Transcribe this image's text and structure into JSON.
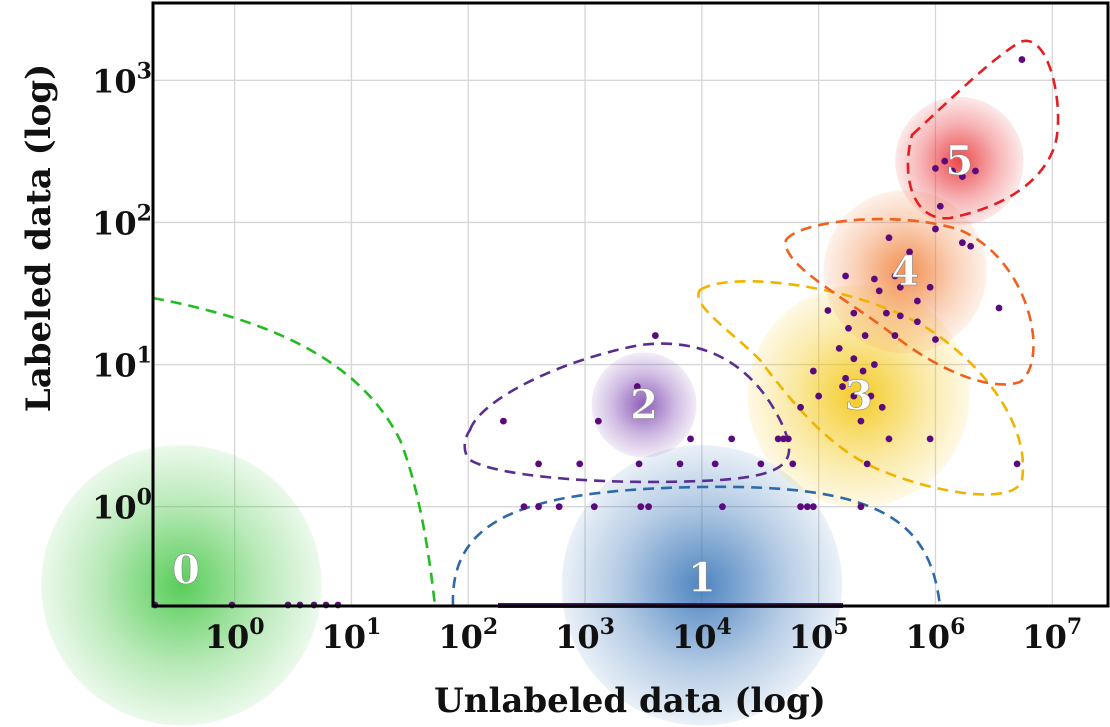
{
  "chart_data": {
    "type": "scatter",
    "title": "",
    "xlabel": "Unlabeled data (log)",
    "ylabel": "Labeled data (log)",
    "x_scale": "log",
    "y_scale": "log",
    "xlim": [
      0.2,
      30000000
    ],
    "ylim": [
      0.2,
      3500
    ],
    "grid": true,
    "x_ticks": [
      {
        "value": 1,
        "base": "10",
        "exp": "0"
      },
      {
        "value": 10,
        "base": "10",
        "exp": "1"
      },
      {
        "value": 100,
        "base": "10",
        "exp": "2"
      },
      {
        "value": 1000,
        "base": "10",
        "exp": "3"
      },
      {
        "value": 10000,
        "base": "10",
        "exp": "4"
      },
      {
        "value": 100000,
        "base": "10",
        "exp": "5"
      },
      {
        "value": 1000000,
        "base": "10",
        "exp": "6"
      },
      {
        "value": 10000000,
        "base": "10",
        "exp": "7"
      }
    ],
    "y_ticks": [
      {
        "value": 1,
        "base": "10",
        "exp": "0"
      },
      {
        "value": 10,
        "base": "10",
        "exp": "1"
      },
      {
        "value": 100,
        "base": "10",
        "exp": "2"
      },
      {
        "value": 1000,
        "base": "10",
        "exp": "3"
      }
    ],
    "clusters": [
      {
        "label": "0",
        "color": "#3cc43c",
        "boundary_color": "#22bb22",
        "x": 0.35,
        "y": 0.28,
        "size": 1.2
      },
      {
        "label": "1",
        "color": "#2f6fb5",
        "boundary_color": "#2e6aa8",
        "x": 10000,
        "y": 0.28,
        "size": 1.2
      },
      {
        "label": "2",
        "color": "#7a3fae",
        "boundary_color": "#5a2d91",
        "x": 3200,
        "y": 5.2,
        "size": 0.45
      },
      {
        "label": "3",
        "color": "#f2c200",
        "boundary_color": "#f0b400",
        "x": 220000,
        "y": 6,
        "size": 0.95
      },
      {
        "label": "4",
        "color": "#f07a30",
        "boundary_color": "#f0601e",
        "x": 550000,
        "y": 45,
        "size": 0.7
      },
      {
        "label": "5",
        "color": "#e8282c",
        "boundary_color": "#e41e22",
        "x": 1600000,
        "y": 270,
        "size": 0.55
      }
    ],
    "points": [
      [
        5500000,
        1400
      ],
      [
        1000000,
        240
      ],
      [
        1200000,
        270
      ],
      [
        1400000,
        230
      ],
      [
        1700000,
        210
      ],
      [
        2200000,
        230
      ],
      [
        1100000,
        130
      ],
      [
        400000,
        78
      ],
      [
        1000000,
        90
      ],
      [
        1700000,
        72
      ],
      [
        2000000,
        68
      ],
      [
        600000,
        62
      ],
      [
        300000,
        40
      ],
      [
        450000,
        42
      ],
      [
        170000,
        42
      ],
      [
        330000,
        33
      ],
      [
        500000,
        35
      ],
      [
        700000,
        28
      ],
      [
        900000,
        35
      ],
      [
        3500000,
        25
      ],
      [
        120000,
        24
      ],
      [
        200000,
        23
      ],
      [
        380000,
        23
      ],
      [
        500000,
        22
      ],
      [
        700000,
        20
      ],
      [
        180000,
        18
      ],
      [
        250000,
        16
      ],
      [
        450000,
        16
      ],
      [
        1000000,
        15
      ],
      [
        150000,
        13
      ],
      [
        200000,
        11
      ],
      [
        300000,
        10
      ],
      [
        240000,
        9
      ],
      [
        170000,
        8
      ],
      [
        90000,
        9
      ],
      [
        160000,
        7
      ],
      [
        100000,
        6
      ],
      [
        200000,
        6
      ],
      [
        280000,
        6
      ],
      [
        350000,
        5
      ],
      [
        230000,
        4
      ],
      [
        400000,
        3
      ],
      [
        4000,
        16
      ],
      [
        70000,
        5
      ],
      [
        55000,
        3
      ],
      [
        1300,
        4
      ],
      [
        8000,
        3
      ],
      [
        18000,
        3
      ],
      [
        45000,
        3
      ],
      [
        50000,
        3
      ],
      [
        200,
        4
      ],
      [
        2800,
        7
      ],
      [
        400,
        2
      ],
      [
        900,
        2
      ],
      [
        2900,
        2
      ],
      [
        6500,
        2
      ],
      [
        13000,
        2
      ],
      [
        32000,
        2
      ],
      [
        60000,
        2
      ],
      [
        260000,
        2
      ],
      [
        900000,
        3
      ],
      [
        5000000,
        2
      ],
      [
        300,
        1
      ],
      [
        600,
        1
      ],
      [
        3000,
        1
      ],
      [
        15000,
        1
      ],
      [
        70000,
        1
      ],
      [
        90000,
        1
      ],
      [
        400,
        1
      ],
      [
        1200,
        1
      ],
      [
        3500,
        1
      ],
      [
        80000,
        1
      ],
      [
        230000,
        1
      ]
    ]
  }
}
